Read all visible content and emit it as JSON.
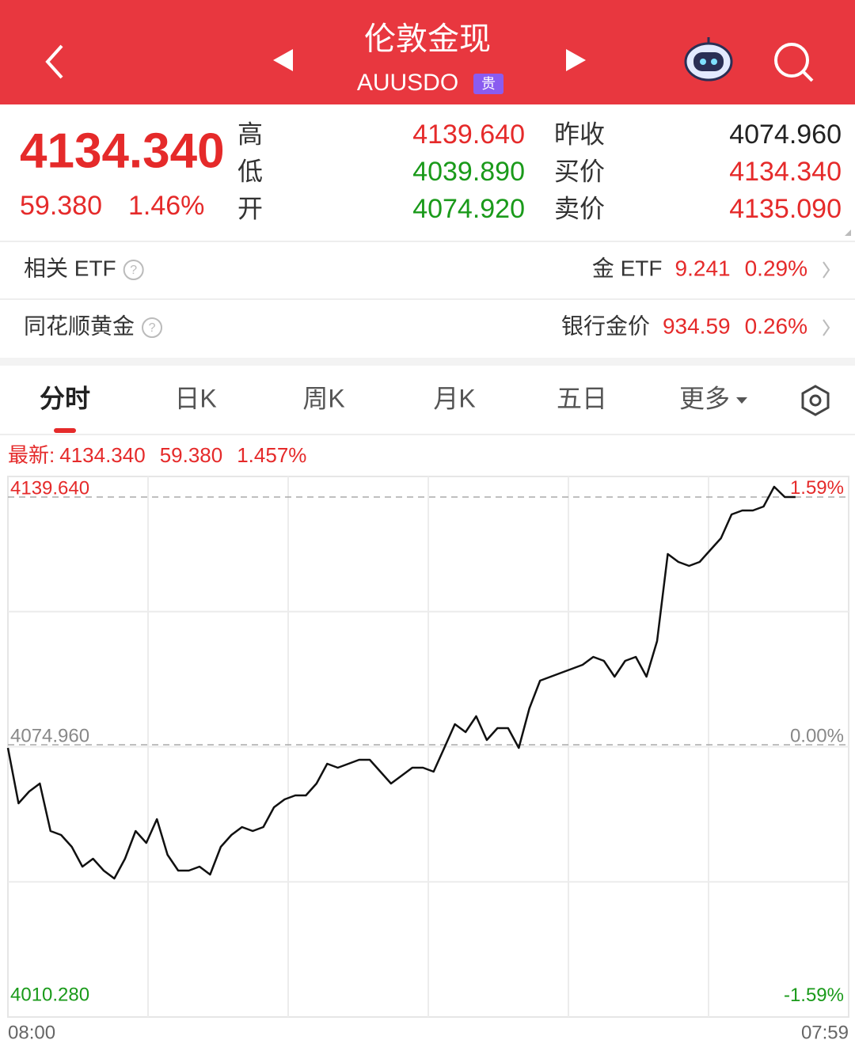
{
  "header": {
    "title": "伦敦金现",
    "code": "AUUSDO",
    "badge": "贵"
  },
  "quote": {
    "price": "4134.340",
    "change": "59.380",
    "change_pct": "1.46%",
    "stats": [
      {
        "label": "高",
        "value": "4139.640",
        "color": "#e52a2a"
      },
      {
        "label": "低",
        "value": "4039.890",
        "color": "#1a9a1a"
      },
      {
        "label": "开",
        "value": "4074.920",
        "color": "#1a9a1a"
      },
      {
        "label": "昨收",
        "value": "4074.960",
        "color": "#222222"
      },
      {
        "label": "买价",
        "value": "4134.340",
        "color": "#e52a2a"
      },
      {
        "label": "卖价",
        "value": "4135.090",
        "color": "#e52a2a"
      }
    ]
  },
  "rows": [
    {
      "label": "相关 ETF",
      "name": "金 ETF",
      "value": "9.241",
      "pct": "0.29%"
    },
    {
      "label": "同花顺黄金",
      "name": "银行金价",
      "value": "934.59",
      "pct": "0.26%"
    }
  ],
  "tabs": [
    "分时",
    "日K",
    "周K",
    "月K",
    "五日",
    "更多"
  ],
  "chart_data": {
    "type": "line",
    "info": {
      "label": "最新:",
      "value": "4134.340",
      "change": "59.380",
      "pct": "1.457%"
    },
    "categories": [
      "08:00",
      null,
      null,
      null,
      null,
      null,
      null,
      null,
      null,
      null,
      null,
      null,
      null,
      null,
      null,
      null,
      null,
      null,
      null,
      null,
      null,
      null,
      null,
      null,
      null,
      null,
      null,
      null,
      null,
      null,
      null,
      null,
      null,
      null,
      null,
      null,
      null,
      null,
      null,
      null,
      null,
      null,
      null,
      null,
      null,
      null,
      null,
      null,
      null,
      null,
      null,
      null,
      null,
      null,
      null,
      null,
      null,
      null,
      null,
      null,
      null,
      null,
      null,
      null,
      null,
      null,
      null,
      null,
      null,
      null,
      null,
      null,
      null,
      null,
      null,
      null,
      null,
      null,
      null,
      "07:59"
    ],
    "series": [
      {
        "color": "#111111",
        "values": [
          4074.13,
          4059.67,
          4062.77,
          4064.83,
          4052.43,
          4051.4,
          4048.3,
          4043.14,
          4045.2,
          4042.1,
          4040.04,
          4045.2,
          4052.43,
          4049.34,
          4055.53,
          4046.24,
          4042.1,
          4042.1,
          4043.14,
          4041.07,
          4048.3,
          4051.4,
          4053.47,
          4052.43,
          4053.47,
          4058.63,
          4060.7,
          4061.73,
          4061.73,
          4064.83,
          4070.0,
          4068.97,
          4070.0,
          4071.03,
          4071.03,
          4067.93,
          4064.83,
          4066.9,
          4068.97,
          4068.97,
          4067.93,
          4074.13,
          4080.33,
          4078.27,
          4082.4,
          4076.2,
          4079.3,
          4079.3,
          4074.13,
          4084.47,
          4091.7,
          4092.73,
          4093.77,
          4094.8,
          4095.83,
          4097.9,
          4096.87,
          4092.73,
          4096.87,
          4097.9,
          4092.73,
          4102.03,
          4124.76,
          4122.7,
          4121.66,
          4122.7,
          4125.8,
          4128.9,
          4135.1,
          4136.13,
          4136.13,
          4137.16,
          4142.33,
          4139.64,
          4139.64,
          null,
          null,
          null,
          null,
          null
        ]
      }
    ],
    "ylim": [
      4003.87,
      4145.01
    ],
    "yticks": [
      {
        "value": 4139.64,
        "label": "4139.640"
      },
      {
        "value": 4074.96,
        "label": "4074.960"
      },
      {
        "value": 4010.28,
        "label": "4010.280"
      }
    ],
    "y2lim": [
      -1.745,
      1.719
    ],
    "y2ticks": [
      {
        "value": 1.59,
        "label": "1.59%"
      },
      {
        "value": 0,
        "label": "0.00%"
      },
      {
        "value": -1.59,
        "label": "-1.59%"
      }
    ]
  }
}
